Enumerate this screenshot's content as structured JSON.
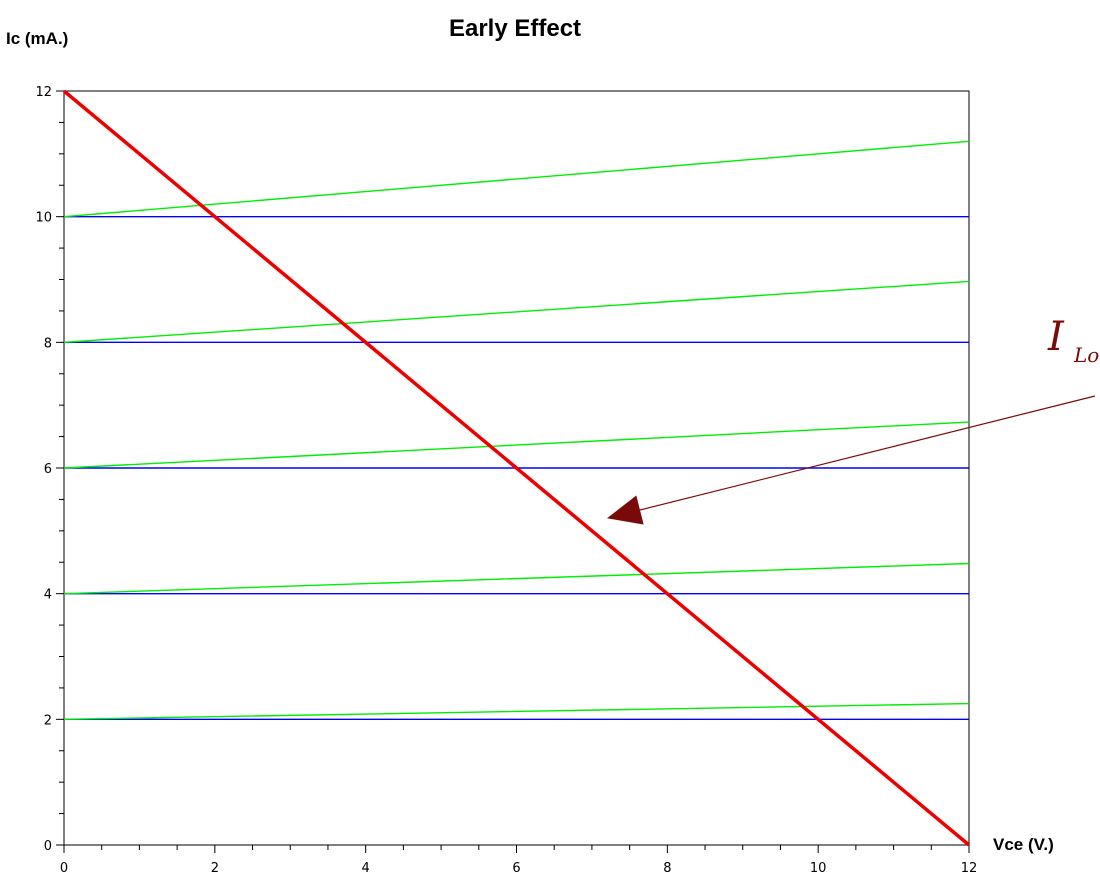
{
  "chart_data": {
    "type": "line",
    "title": "Early Effect",
    "xlabel": "Vce (V.)",
    "ylabel": "Ic (mA.)",
    "xlim": [
      0,
      12
    ],
    "ylim": [
      0,
      12
    ],
    "x_ticks": [
      0,
      2,
      4,
      6,
      8,
      10,
      12
    ],
    "y_ticks": [
      0,
      2,
      4,
      6,
      8,
      10,
      12
    ],
    "grid": false,
    "annotation": {
      "main": "I",
      "sub": "Lo"
    },
    "series": [
      {
        "group": "ideal",
        "color": "#0000ff",
        "points": [
          [
            0,
            2
          ],
          [
            12,
            2
          ]
        ]
      },
      {
        "group": "ideal",
        "color": "#0000ff",
        "points": [
          [
            0,
            4
          ],
          [
            12,
            4
          ]
        ]
      },
      {
        "group": "ideal",
        "color": "#0000ff",
        "points": [
          [
            0,
            6
          ],
          [
            12,
            6
          ]
        ]
      },
      {
        "group": "ideal",
        "color": "#0000ff",
        "points": [
          [
            0,
            8
          ],
          [
            12,
            8
          ]
        ]
      },
      {
        "group": "ideal",
        "color": "#0000ff",
        "points": [
          [
            0,
            10
          ],
          [
            12,
            10
          ]
        ]
      },
      {
        "group": "early",
        "color": "#00ee00",
        "points": [
          [
            0,
            2
          ],
          [
            12,
            2.25
          ]
        ]
      },
      {
        "group": "early",
        "color": "#00ee00",
        "points": [
          [
            0,
            4
          ],
          [
            12,
            4.48
          ]
        ]
      },
      {
        "group": "early",
        "color": "#00ee00",
        "points": [
          [
            0,
            6
          ],
          [
            12,
            6.73
          ]
        ]
      },
      {
        "group": "early",
        "color": "#00ee00",
        "points": [
          [
            0,
            8
          ],
          [
            12,
            8.97
          ]
        ]
      },
      {
        "group": "early",
        "color": "#00ee00",
        "points": [
          [
            0,
            10
          ],
          [
            12,
            11.2
          ]
        ]
      },
      {
        "group": "load-line",
        "color": "#ee0000",
        "points": [
          [
            0,
            12
          ],
          [
            12,
            0
          ]
        ]
      }
    ],
    "arrow_target": [
      7.2,
      5.2
    ],
    "colors": {
      "arrow": "#7a0a0a",
      "axis": "#000000"
    }
  }
}
